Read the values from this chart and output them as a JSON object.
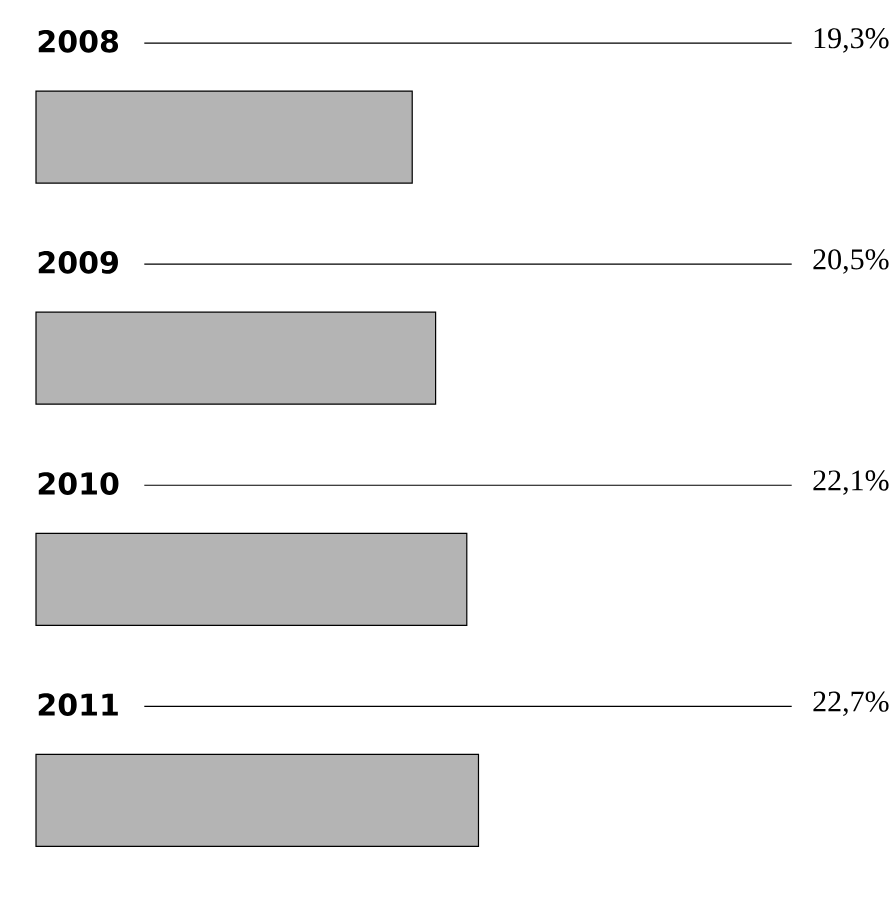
{
  "chart_data": {
    "type": "bar",
    "orientation": "horizontal",
    "categories": [
      "2008",
      "2009",
      "2010",
      "2011"
    ],
    "values": [
      19.3,
      20.5,
      22.1,
      22.7
    ],
    "value_labels": [
      "19,3%",
      "20,5%",
      "22,1%",
      "22,7%"
    ],
    "color": "#b4b4b4"
  }
}
